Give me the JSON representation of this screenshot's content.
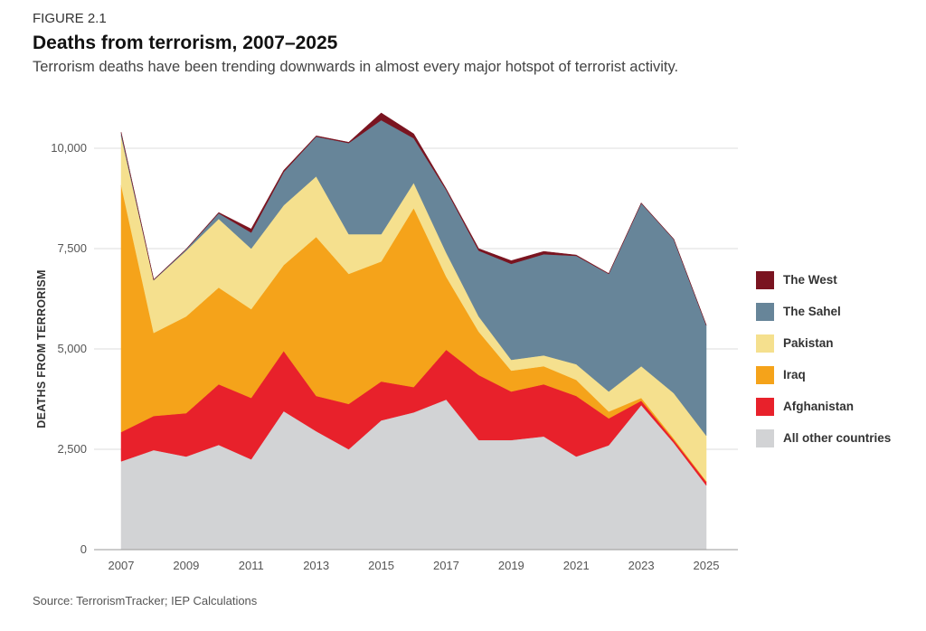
{
  "figure_label": "FIGURE 2.1",
  "title": "Deaths from terrorism, 2007–2025",
  "subtitle": "Terrorism deaths have been trending downwards in almost every major hotspot of terrorist activity.",
  "source": "Source: TerrorismTracker; IEP Calculations",
  "chart_data": {
    "type": "area",
    "stacked": true,
    "ylabel": "DEATHS FROM TERRORISM",
    "xlabel": "",
    "ylim": [
      0,
      11000
    ],
    "yticks": [
      0,
      2500,
      5000,
      7500,
      10000
    ],
    "ytick_labels": [
      "0",
      "2,500",
      "5,000",
      "7,500",
      "10,000"
    ],
    "xtick_labels": [
      "2007",
      "2009",
      "2011",
      "2013",
      "2015",
      "2017",
      "2019",
      "2021",
      "2023",
      "2025"
    ],
    "grid": "horizontal",
    "legend_position": "right",
    "x": [
      2007,
      2008,
      2009,
      2010,
      2011,
      2012,
      2013,
      2014,
      2015,
      2016,
      2017,
      2018,
      2019,
      2020,
      2021,
      2022,
      2023,
      2024,
      2025
    ],
    "series": [
      {
        "name": "All other countries",
        "color": "#d2d3d5",
        "values": [
          2200,
          2480,
          2320,
          2610,
          2250,
          3450,
          2950,
          2500,
          3220,
          3420,
          3740,
          2730,
          2730,
          2820,
          2320,
          2600,
          3600,
          2660,
          1600
        ]
      },
      {
        "name": "Afghanistan",
        "color": "#e8212b",
        "values": [
          730,
          850,
          1080,
          1510,
          1530,
          1500,
          880,
          1130,
          970,
          630,
          1240,
          1620,
          1210,
          1300,
          1510,
          670,
          110,
          70,
          90
        ]
      },
      {
        "name": "Iraq",
        "color": "#f5a31a",
        "values": [
          6150,
          2070,
          2410,
          2410,
          2210,
          2140,
          3960,
          3240,
          2990,
          4460,
          1820,
          1080,
          520,
          450,
          400,
          170,
          70,
          40,
          20
        ]
      },
      {
        "name": "Pakistan",
        "color": "#f5e08e",
        "values": [
          1220,
          1310,
          1640,
          1710,
          1510,
          1490,
          1510,
          990,
          680,
          630,
          600,
          380,
          270,
          270,
          390,
          500,
          790,
          1130,
          1130
        ]
      },
      {
        "name": "The Sahel",
        "color": "#678599",
        "values": [
          80,
          10,
          30,
          140,
          400,
          830,
          990,
          2270,
          2840,
          1110,
          1560,
          1640,
          2390,
          2520,
          2700,
          2930,
          4060,
          3830,
          2750
        ]
      },
      {
        "name": "The West",
        "color": "#7a1420",
        "values": [
          20,
          10,
          10,
          20,
          90,
          40,
          20,
          20,
          180,
          110,
          30,
          50,
          80,
          70,
          20,
          10,
          10,
          10,
          10
        ]
      }
    ],
    "legend_order": [
      "The West",
      "The Sahel",
      "Pakistan",
      "Iraq",
      "Afghanistan",
      "All other countries"
    ]
  }
}
